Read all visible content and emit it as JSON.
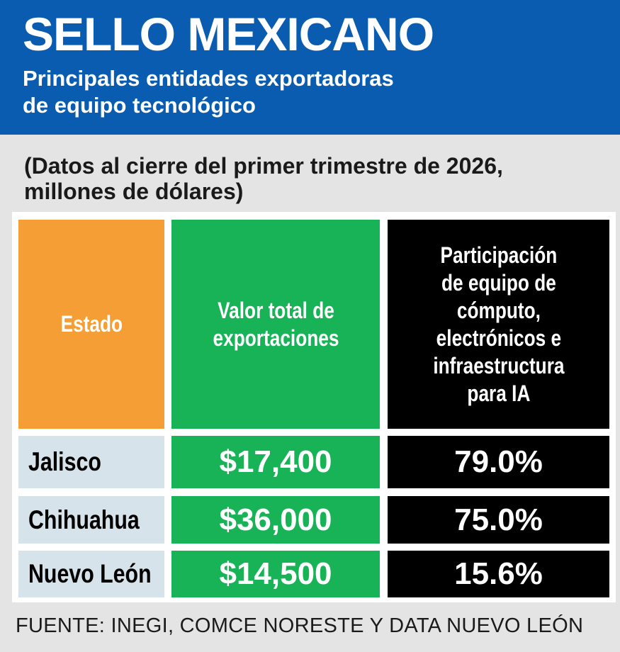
{
  "header": {
    "title": "SELLO MEXICANO",
    "subtitle_line1": "Principales entidades exportadoras",
    "subtitle_line2": "de equipo tecnológico"
  },
  "note": {
    "line1": "(Datos al cierre del primer trimestre de 2026,",
    "line2": "millones de dólares)"
  },
  "colors": {
    "header_blue": "#0a5cb1",
    "orange": "#f59e36",
    "green": "#18b257",
    "black": "#000000",
    "row_light": "#d6e3ea"
  },
  "chart_data": {
    "type": "table",
    "columns": [
      {
        "lines": [
          "Estado"
        ]
      },
      {
        "lines": [
          "Valor total de",
          "exportaciones"
        ]
      },
      {
        "lines": [
          "Participación",
          "de equipo de",
          "cómputo,",
          "electrónicos e",
          "infraestructura",
          "para IA"
        ]
      }
    ],
    "rows": [
      {
        "estado": "Jalisco",
        "valor": "$17,400",
        "participacion": "79.0%"
      },
      {
        "estado": "Chihuahua",
        "valor": "$36,000",
        "participacion": "75.0%"
      },
      {
        "estado": "Nuevo León",
        "valor": "$14,500",
        "participacion": "15.6%"
      }
    ]
  },
  "source": "FUENTE: INEGI, COMCE NORESTE Y DATA NUEVO LEÓN"
}
